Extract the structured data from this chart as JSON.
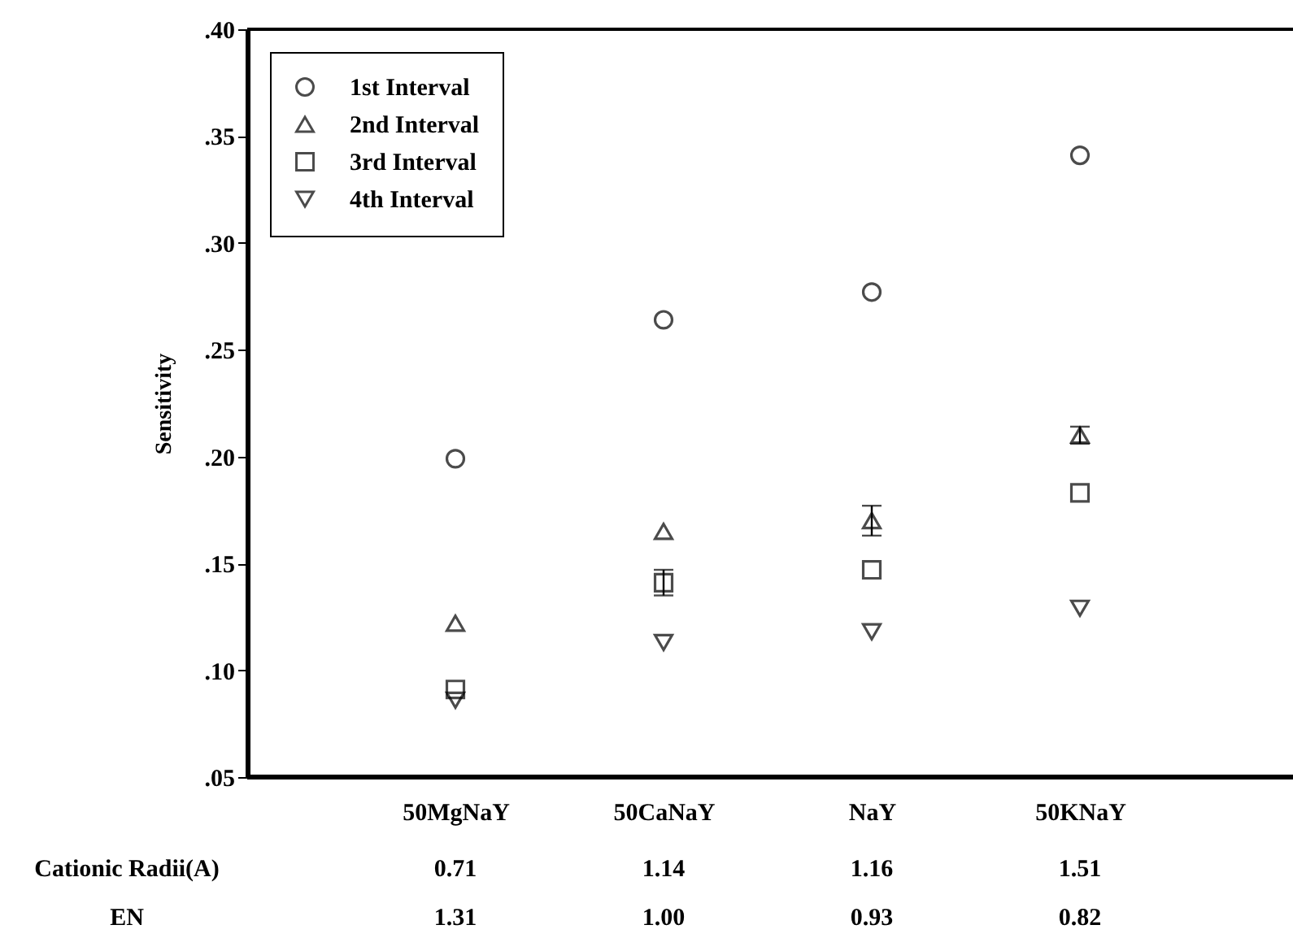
{
  "chart_data": {
    "type": "scatter",
    "ylabel": "Sensitivity",
    "categories": [
      "50MgNaY",
      "50CaNaY",
      "NaY",
      "50KNaY"
    ],
    "series": [
      {
        "name": "1st Interval",
        "color": "#000000",
        "marker": "circle",
        "values": [
          0.199,
          0.264,
          0.277,
          0.341
        ],
        "errors": [
          null,
          null,
          null,
          null
        ]
      },
      {
        "name": "2nd Interval",
        "color": "#000000",
        "marker": "triangle",
        "values": [
          0.122,
          0.165,
          0.17,
          0.21
        ],
        "errors": [
          null,
          null,
          0.007,
          0.004
        ]
      },
      {
        "name": "3rd Interval",
        "color": "#000000",
        "marker": "square",
        "values": [
          0.091,
          0.141,
          0.147,
          0.183
        ],
        "errors": [
          null,
          0.006,
          null,
          null
        ]
      },
      {
        "name": "4th Interval",
        "color": "#000000",
        "marker": "triangle-down",
        "values": [
          0.086,
          0.113,
          0.118,
          0.129
        ],
        "errors": [
          null,
          null,
          null,
          null
        ]
      }
    ],
    "ylim": [
      0.05,
      0.4
    ],
    "yticks": [
      {
        "value": 0.05,
        "label": ".05"
      },
      {
        "value": 0.1,
        "label": ".10"
      },
      {
        "value": 0.15,
        "label": ".15"
      },
      {
        "value": 0.2,
        "label": ".20"
      },
      {
        "value": 0.25,
        "label": ".25"
      },
      {
        "value": 0.3,
        "label": ".30"
      },
      {
        "value": 0.35,
        "label": ".35"
      },
      {
        "value": 0.4,
        "label": ".40"
      }
    ],
    "grid": false,
    "legend": "top left",
    "annotations": [
      "Cationic Radii(A)",
      "0.71",
      "1.14",
      "1.16",
      "1.51",
      "EN",
      "1.31",
      "1.00",
      "0.93",
      "0.82"
    ]
  }
}
